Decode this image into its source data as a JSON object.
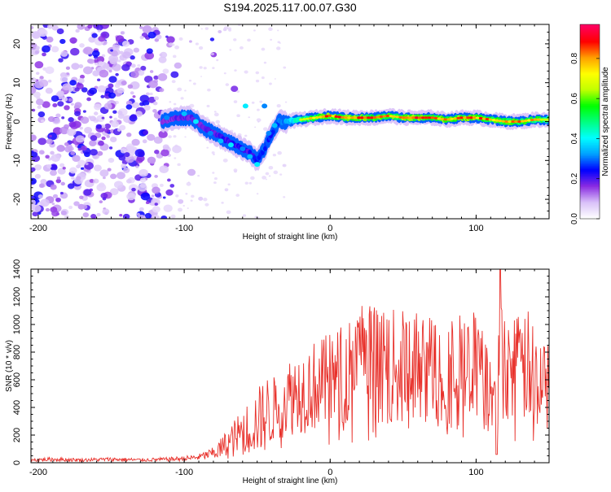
{
  "title": "S194.2025.117.00.07.G30",
  "chart_data": [
    {
      "type": "heatmap",
      "xlabel": "Height of straight line (km)",
      "ylabel": "Frequency (Hz)",
      "xlim": [
        -205,
        150
      ],
      "ylim": [
        -25,
        25
      ],
      "xticks": [
        -200,
        -100,
        0,
        100
      ],
      "yticks": [
        -20,
        -10,
        0,
        10,
        20
      ],
      "colorbar": {
        "label": "Normalized spectral amplitude",
        "range": [
          0,
          0.97
        ],
        "ticks": [
          "0.0",
          "0.2",
          "0.4",
          "0.6",
          "0.8"
        ],
        "colormap": [
          "#ffffff",
          "#d8c0f8",
          "#8a2be2",
          "#0000ff",
          "#00a0ff",
          "#00ffff",
          "#00ff80",
          "#00ff00",
          "#c0ff00",
          "#ffff00",
          "#ffa000",
          "#ff0000",
          "#ff0060"
        ]
      },
      "ridge": {
        "x": [
          -115,
          -105,
          -95,
          -85,
          -75,
          -65,
          -55,
          -50,
          -45,
          -40,
          -35,
          -30,
          -20,
          -10,
          0,
          10,
          20,
          30,
          40,
          50,
          60,
          70,
          80,
          90,
          100,
          110,
          120,
          130,
          140,
          150
        ],
        "y": [
          0,
          1,
          1,
          -2,
          -4,
          -6,
          -8,
          -10,
          -7,
          -3,
          0,
          0,
          0.5,
          1,
          1.5,
          1,
          1,
          1,
          1.5,
          1,
          1,
          1,
          0.5,
          1,
          1,
          0.5,
          0,
          0,
          0.5,
          0.5
        ],
        "amplitude": [
          0.25,
          0.3,
          0.3,
          0.3,
          0.35,
          0.35,
          0.35,
          0.4,
          0.45,
          0.4,
          0.5,
          0.55,
          0.75,
          0.9,
          0.95,
          0.95,
          0.95,
          0.95,
          0.9,
          0.95,
          0.95,
          0.9,
          0.95,
          0.95,
          0.95,
          0.9,
          0.9,
          0.9,
          0.85,
          0.8
        ]
      }
    },
    {
      "type": "line",
      "xlabel": "Height of straight line (km)",
      "ylabel": "SNR (10 * v/v)",
      "xlim": [
        -205,
        150
      ],
      "ylim": [
        0,
        1400
      ],
      "xticks": [
        -200,
        -100,
        0,
        100
      ],
      "yticks": [
        0,
        200,
        400,
        600,
        800,
        1000,
        1200,
        1400
      ],
      "color": "#e8302a",
      "series": [
        {
          "x": [
            -205,
            -190,
            -170,
            -150,
            -130,
            -110,
            -100,
            -90,
            -80,
            -75,
            -70,
            -65,
            -60,
            -55,
            -50,
            -45,
            -40,
            -35,
            -30,
            -25,
            -20,
            -15,
            -10,
            -5,
            0,
            5,
            10,
            15,
            20,
            25,
            30,
            35,
            40,
            45,
            50,
            55,
            60,
            65,
            70,
            75,
            80,
            85,
            90,
            95,
            100,
            105,
            110,
            115,
            118,
            120,
            125,
            130,
            135,
            140,
            145,
            150
          ],
          "y": [
            20,
            25,
            20,
            25,
            20,
            25,
            30,
            40,
            70,
            100,
            140,
            180,
            220,
            260,
            300,
            340,
            380,
            420,
            470,
            500,
            520,
            540,
            560,
            570,
            590,
            610,
            650,
            700,
            720,
            730,
            720,
            710,
            700,
            690,
            690,
            700,
            690,
            680,
            690,
            680,
            680,
            680,
            690,
            700,
            690,
            600,
            450,
            550,
            1080,
            750,
            650,
            680,
            700,
            620,
            580,
            600
          ]
        }
      ]
    }
  ]
}
